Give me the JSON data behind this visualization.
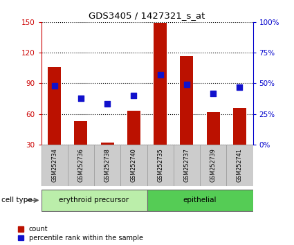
{
  "title": "GDS3405 / 1427321_s_at",
  "samples": [
    "GSM252734",
    "GSM252736",
    "GSM252738",
    "GSM252740",
    "GSM252735",
    "GSM252737",
    "GSM252739",
    "GSM252741"
  ],
  "counts": [
    106,
    53,
    32,
    63,
    149,
    117,
    62,
    66
  ],
  "percentile_ranks": [
    48,
    38,
    33,
    40,
    57,
    49,
    42,
    47
  ],
  "cell_types": [
    {
      "label": "erythroid precursor",
      "start": 0,
      "end": 4,
      "color": "#bbeeaa"
    },
    {
      "label": "epithelial",
      "start": 4,
      "end": 8,
      "color": "#55cc55"
    }
  ],
  "ylim_left": [
    30,
    150
  ],
  "ylim_right": [
    0,
    100
  ],
  "yticks_left": [
    30,
    60,
    90,
    120,
    150
  ],
  "yticks_right": [
    0,
    25,
    50,
    75,
    100
  ],
  "ytick_labels_right": [
    "0%",
    "25%",
    "50%",
    "75%",
    "100%"
  ],
  "bar_color": "#bb1100",
  "dot_color": "#1111cc",
  "bar_width": 0.5,
  "dot_size": 28,
  "left_axis_color": "#cc0000",
  "right_axis_color": "#0000cc",
  "plot_bg": "#ffffff",
  "label_box_color": "#cccccc",
  "label_box_edge": "#999999"
}
